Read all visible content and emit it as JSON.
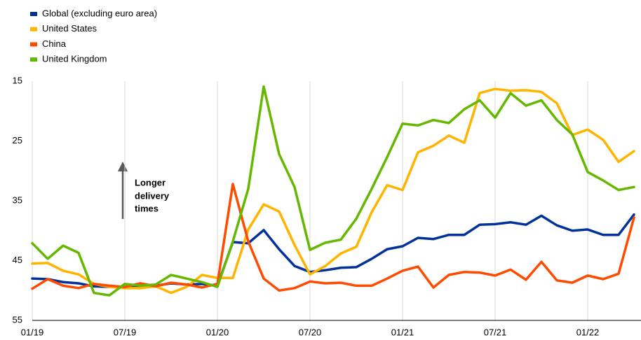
{
  "chart_data": {
    "type": "line",
    "categories": [
      "01/19",
      null,
      null,
      null,
      null,
      null,
      "07/19",
      null,
      null,
      null,
      null,
      null,
      "01/20",
      null,
      null,
      null,
      null,
      null,
      "07/20",
      null,
      null,
      null,
      null,
      null,
      "01/21",
      null,
      null,
      null,
      null,
      null,
      "07/21",
      null,
      null,
      null,
      null,
      null,
      "01/22",
      null,
      null,
      null
    ],
    "series": [
      {
        "name": "Global (excluding euro area)",
        "color": "#003299",
        "values": [
          48.0,
          48.1,
          48.6,
          48.8,
          49.3,
          49.4,
          49.4,
          49.3,
          49.2,
          48.8,
          49.0,
          48.9,
          49.2,
          41.9,
          42.1,
          39.9,
          43.1,
          45.9,
          46.9,
          46.6,
          46.2,
          46.1,
          44.7,
          43.1,
          42.6,
          41.2,
          41.4,
          40.7,
          40.7,
          39.0,
          38.9,
          38.6,
          39.0,
          37.5,
          39.1,
          40.0,
          39.8,
          40.7,
          40.7,
          37.3
        ]
      },
      {
        "name": "United States",
        "color": "#ffb400",
        "values": [
          45.5,
          45.4,
          46.7,
          47.3,
          48.9,
          49.4,
          49.6,
          49.6,
          49.3,
          50.4,
          49.4,
          47.4,
          47.9,
          47.9,
          39.8,
          35.6,
          36.8,
          42.4,
          47.3,
          45.9,
          43.8,
          42.7,
          36.9,
          32.4,
          33.2,
          26.9,
          25.8,
          24.1,
          25.3,
          17.0,
          16.3,
          16.6,
          16.5,
          16.8,
          18.7,
          24.0,
          23.1,
          24.8,
          28.5,
          26.7
        ]
      },
      {
        "name": "China",
        "color": "#ff4b00",
        "values": [
          49.7,
          48.1,
          49.2,
          49.6,
          48.9,
          49.2,
          49.4,
          48.8,
          49.3,
          48.7,
          49.0,
          49.5,
          48.9,
          32.2,
          41.8,
          48.0,
          50.0,
          49.6,
          48.5,
          48.8,
          48.7,
          49.2,
          49.2,
          48.0,
          46.7,
          46.0,
          49.5,
          47.4,
          46.9,
          47.0,
          47.5,
          46.5,
          48.2,
          45.2,
          48.3,
          48.7,
          47.5,
          48.1,
          47.2,
          37.8
        ]
      },
      {
        "name": "United Kingdom",
        "color": "#65b800",
        "values": [
          42.1,
          44.7,
          42.5,
          43.7,
          50.4,
          50.8,
          48.9,
          49.2,
          49.0,
          47.4,
          48.0,
          48.6,
          49.4,
          41.8,
          33.0,
          15.9,
          27.2,
          32.7,
          43.2,
          42.0,
          41.5,
          38.0,
          33.0,
          27.7,
          22.1,
          22.4,
          21.5,
          22.0,
          19.7,
          18.2,
          21.1,
          17.0,
          19.1,
          18.2,
          21.5,
          23.9,
          30.2,
          31.6,
          33.2,
          32.7
        ]
      }
    ],
    "ylim": [
      55,
      15
    ],
    "yticks": [
      15,
      25,
      35,
      45,
      55
    ],
    "grid": "vertical",
    "annotation": [
      "Longer",
      "delivery",
      "times"
    ]
  }
}
